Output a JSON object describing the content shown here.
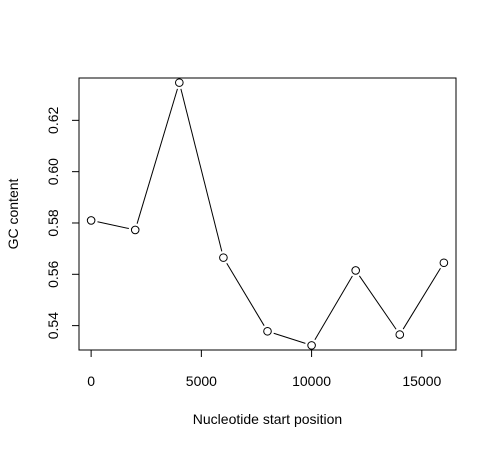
{
  "chart_data": {
    "type": "line",
    "xlabel": "Nucleotide start position",
    "ylabel": "GC content",
    "x_ticks": [
      0,
      5000,
      10000,
      15000
    ],
    "y_ticks": [
      0.54,
      0.56,
      0.58,
      0.6,
      0.62
    ],
    "x_tick_labels": [
      "0",
      "5000",
      "10000",
      "15000"
    ],
    "y_tick_labels": [
      "0.54",
      "0.56",
      "0.58",
      "0.60",
      "0.62"
    ],
    "xlim": [
      -550,
      16550
    ],
    "ylim": [
      0.5305,
      0.6365
    ],
    "grid": false,
    "series": [
      {
        "x": [
          0,
          2000,
          4000,
          6000,
          8000,
          10000,
          12000,
          14000,
          16000
        ],
        "values": [
          0.581,
          0.5773,
          0.6347,
          0.5665,
          0.5378,
          0.5323,
          0.5615,
          0.5365,
          0.5645
        ],
        "color": "#000000"
      }
    ]
  }
}
